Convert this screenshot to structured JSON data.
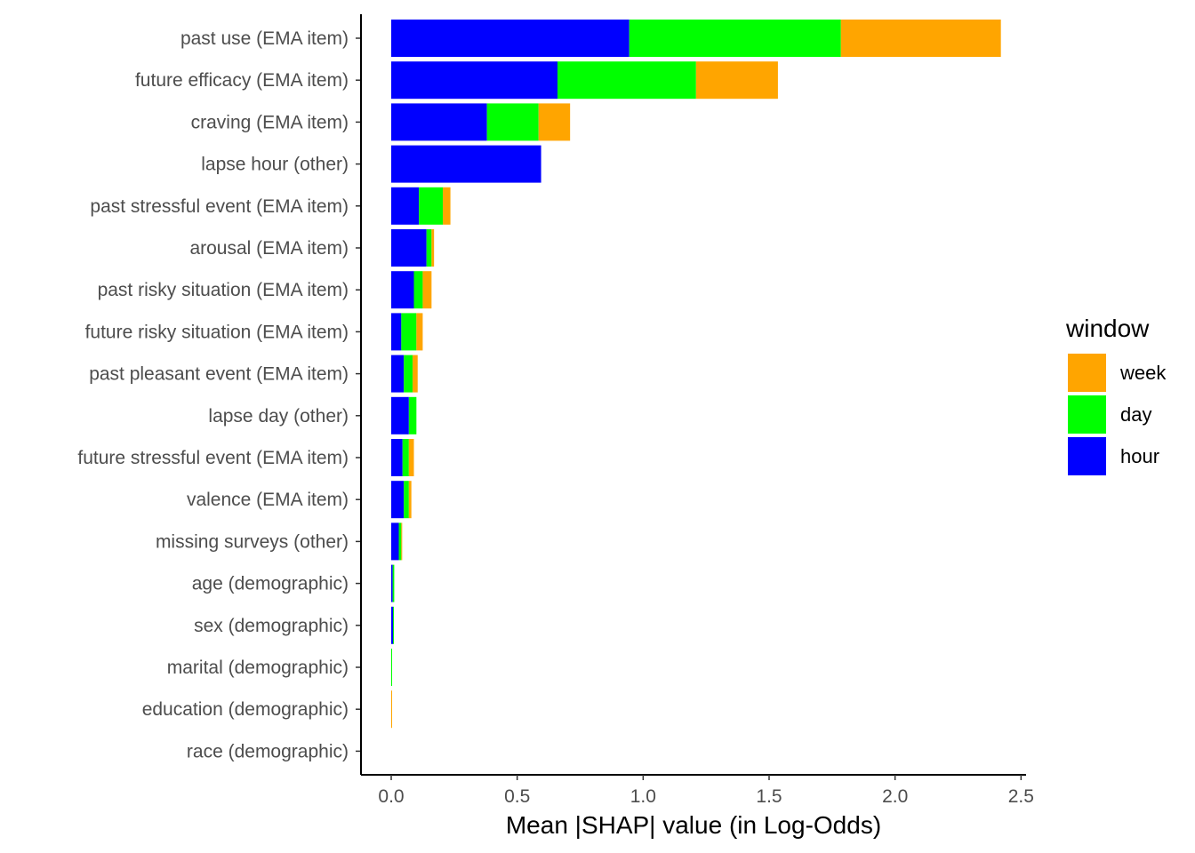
{
  "chart_data": {
    "type": "bar",
    "orientation": "horizontal",
    "stacked": true,
    "xlabel": "Mean |SHAP| value (in Log-Odds)",
    "ylabel": "",
    "xlim": [
      -0.12,
      2.52
    ],
    "xticks": [
      0.0,
      0.5,
      1.0,
      1.5,
      2.0,
      2.5
    ],
    "xtick_labels": [
      "0.0",
      "0.5",
      "1.0",
      "1.5",
      "2.0",
      "2.5"
    ],
    "grid": false,
    "legend_position": "right",
    "legend_title": "window",
    "legend_order": [
      "week",
      "day",
      "hour"
    ],
    "colors": {
      "hour": "#0000FF",
      "day": "#00FF00",
      "week": "#FFA500"
    },
    "categories": [
      "past use (EMA item)",
      "future efficacy (EMA item)",
      "craving (EMA item)",
      "lapse hour (other)",
      "past stressful event (EMA item)",
      "arousal (EMA item)",
      "past risky situation (EMA item)",
      "future risky situation (EMA item)",
      "past pleasant event (EMA item)",
      "lapse day (other)",
      "future stressful event (EMA item)",
      "valence (EMA item)",
      "missing surveys (other)",
      "age (demographic)",
      "sex (demographic)",
      "marital (demographic)",
      "education (demographic)",
      "race (demographic)"
    ],
    "series": [
      {
        "name": "hour",
        "values": [
          0.945,
          0.66,
          0.38,
          0.595,
          0.11,
          0.14,
          0.09,
          0.04,
          0.05,
          0.07,
          0.045,
          0.05,
          0.03,
          0.006,
          0.007,
          0.0,
          0.0,
          0.0
        ]
      },
      {
        "name": "day",
        "values": [
          0.84,
          0.55,
          0.205,
          0.0,
          0.095,
          0.02,
          0.035,
          0.06,
          0.035,
          0.03,
          0.025,
          0.02,
          0.01,
          0.006,
          0.003,
          0.002,
          0.0,
          0.0
        ]
      },
      {
        "name": "week",
        "values": [
          0.635,
          0.325,
          0.125,
          0.0,
          0.03,
          0.01,
          0.035,
          0.025,
          0.02,
          0.0,
          0.02,
          0.01,
          0.003,
          0.0,
          0.0,
          0.0,
          0.002,
          0.0
        ]
      }
    ]
  }
}
